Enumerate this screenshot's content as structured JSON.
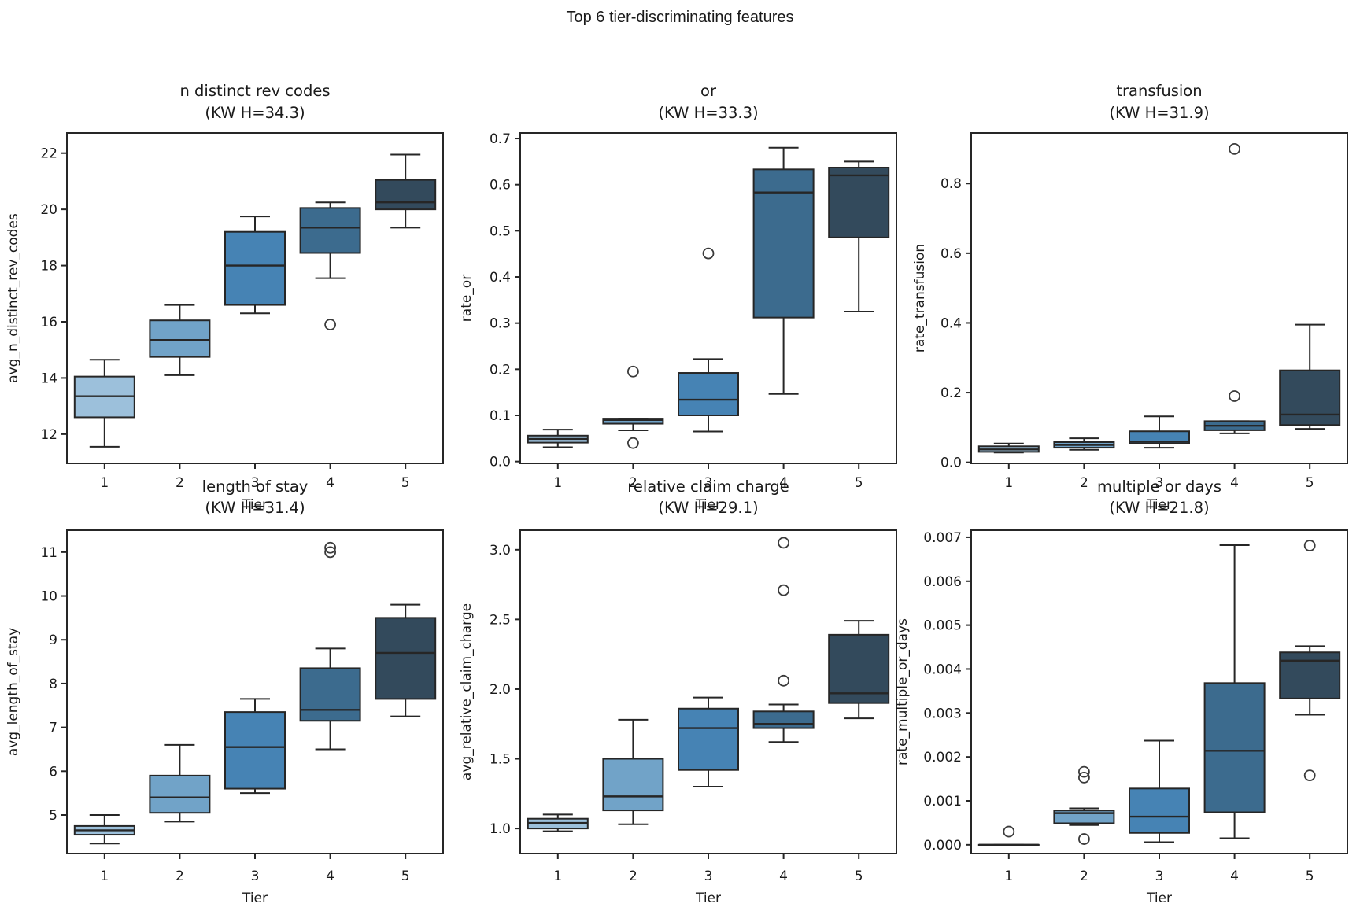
{
  "figure": {
    "title": "Top 6 tier-discriminating features",
    "background": "#ffffff",
    "text_color": "#1a1a1a",
    "edge_color": "#262626",
    "flier_color": "#3a3a3a",
    "tier_palette": [
      "#9cc0db",
      "#71a3c8",
      "#4683b4",
      "#3c6b8e",
      "#334a5c"
    ]
  },
  "chart_data": [
    {
      "type": "box",
      "title": "n distinct rev codes",
      "subtitle": "(KW H=34.3)",
      "xlabel": "Tier",
      "ylabel": "avg_n_distinct_rev_codes",
      "categories": [
        "1",
        "2",
        "3",
        "4",
        "5"
      ],
      "ylim": [
        10.96,
        22.72
      ],
      "yticks": [
        12,
        14,
        16,
        18,
        20,
        22
      ],
      "ytick_labels": [
        "12",
        "14",
        "16",
        "18",
        "20",
        "22"
      ],
      "boxes": [
        {
          "whislo": 11.55,
          "q1": 12.6,
          "med": 13.35,
          "q3": 14.05,
          "whishi": 14.65,
          "fliers": []
        },
        {
          "whislo": 14.1,
          "q1": 14.75,
          "med": 15.35,
          "q3": 16.05,
          "whishi": 16.6,
          "fliers": []
        },
        {
          "whislo": 16.3,
          "q1": 16.6,
          "med": 18.0,
          "q3": 19.2,
          "whishi": 19.75,
          "fliers": []
        },
        {
          "whislo": 17.55,
          "q1": 18.45,
          "med": 19.35,
          "q3": 20.05,
          "whishi": 20.25,
          "fliers": [
            15.9
          ]
        },
        {
          "whislo": 19.35,
          "q1": 20.0,
          "med": 20.25,
          "q3": 21.05,
          "whishi": 21.95,
          "fliers": []
        }
      ]
    },
    {
      "type": "box",
      "title": "or",
      "subtitle": "(KW H=33.3)",
      "xlabel": "Tier",
      "ylabel": "rate_or",
      "categories": [
        "1",
        "2",
        "3",
        "4",
        "5"
      ],
      "ylim": [
        -0.004,
        0.712
      ],
      "yticks": [
        0.0,
        0.1,
        0.2,
        0.3,
        0.4,
        0.5,
        0.6,
        0.7
      ],
      "ytick_labels": [
        "0.0",
        "0.1",
        "0.2",
        "0.3",
        "0.4",
        "0.5",
        "0.6",
        "0.7"
      ],
      "boxes": [
        {
          "whislo": 0.031,
          "q1": 0.041,
          "med": 0.049,
          "q3": 0.056,
          "whishi": 0.069,
          "fliers": []
        },
        {
          "whislo": 0.0675,
          "q1": 0.082,
          "med": 0.09,
          "q3": 0.093,
          "whishi": 0.093,
          "fliers": [
            0.195,
            0.04
          ]
        },
        {
          "whislo": 0.065,
          "q1": 0.1,
          "med": 0.134,
          "q3": 0.192,
          "whishi": 0.222,
          "fliers": [
            0.451
          ]
        },
        {
          "whislo": 0.1465,
          "q1": 0.312,
          "med": 0.583,
          "q3": 0.633,
          "whishi": 0.68,
          "fliers": []
        },
        {
          "whislo": 0.325,
          "q1": 0.4855,
          "med": 0.62,
          "q3": 0.637,
          "whishi": 0.65,
          "fliers": []
        }
      ]
    },
    {
      "type": "box",
      "title": "transfusion",
      "subtitle": "(KW H=31.9)",
      "xlabel": "Tier",
      "ylabel": "rate_transfusion",
      "categories": [
        "1",
        "2",
        "3",
        "4",
        "5"
      ],
      "ylim": [
        -0.003,
        0.945
      ],
      "yticks": [
        0.0,
        0.2,
        0.4,
        0.6,
        0.8
      ],
      "ytick_labels": [
        "0.0",
        "0.2",
        "0.4",
        "0.6",
        "0.8"
      ],
      "boxes": [
        {
          "whislo": 0.028,
          "q1": 0.03,
          "med": 0.037,
          "q3": 0.046,
          "whishi": 0.054,
          "fliers": []
        },
        {
          "whislo": 0.036,
          "q1": 0.042,
          "med": 0.05,
          "q3": 0.058,
          "whishi": 0.069,
          "fliers": []
        },
        {
          "whislo": 0.042,
          "q1": 0.054,
          "med": 0.059,
          "q3": 0.089,
          "whishi": 0.132,
          "fliers": []
        },
        {
          "whislo": 0.083,
          "q1": 0.092,
          "med": 0.105,
          "q3": 0.118,
          "whishi": 0.118,
          "fliers": [
            0.19,
            0.899
          ]
        },
        {
          "whislo": 0.096,
          "q1": 0.107,
          "med": 0.137,
          "q3": 0.264,
          "whishi": 0.395,
          "fliers": []
        }
      ]
    },
    {
      "type": "box",
      "title": "length of stay",
      "subtitle": "(KW H=31.4)",
      "xlabel": "Tier",
      "ylabel": "avg_length_of_stay",
      "categories": [
        "1",
        "2",
        "3",
        "4",
        "5"
      ],
      "ylim": [
        4.12,
        11.5
      ],
      "yticks": [
        5,
        6,
        7,
        8,
        9,
        10,
        11
      ],
      "ytick_labels": [
        "5",
        "6",
        "7",
        "8",
        "9",
        "10",
        "11"
      ],
      "boxes": [
        {
          "whislo": 4.35,
          "q1": 4.55,
          "med": 4.65,
          "q3": 4.75,
          "whishi": 5.0,
          "fliers": []
        },
        {
          "whislo": 4.85,
          "q1": 5.05,
          "med": 5.4,
          "q3": 5.9,
          "whishi": 6.6,
          "fliers": []
        },
        {
          "whislo": 5.5,
          "q1": 5.6,
          "med": 6.55,
          "q3": 7.35,
          "whishi": 7.65,
          "fliers": []
        },
        {
          "whislo": 6.5,
          "q1": 7.15,
          "med": 7.4,
          "q3": 8.35,
          "whishi": 8.8,
          "fliers": [
            11.0,
            11.1
          ]
        },
        {
          "whislo": 7.25,
          "q1": 7.65,
          "med": 8.7,
          "q3": 9.5,
          "whishi": 9.8,
          "fliers": []
        }
      ]
    },
    {
      "type": "box",
      "title": "relative claim charge",
      "subtitle": "(KW H=29.1)",
      "xlabel": "Tier",
      "ylabel": "avg_relative_claim_charge",
      "categories": [
        "1",
        "2",
        "3",
        "4",
        "5"
      ],
      "ylim": [
        0.82,
        3.14
      ],
      "yticks": [
        1.0,
        1.5,
        2.0,
        2.5,
        3.0
      ],
      "ytick_labels": [
        "1.0",
        "1.5",
        "2.0",
        "2.5",
        "3.0"
      ],
      "boxes": [
        {
          "whislo": 0.98,
          "q1": 1.0,
          "med": 1.04,
          "q3": 1.07,
          "whishi": 1.1,
          "fliers": []
        },
        {
          "whislo": 1.03,
          "q1": 1.13,
          "med": 1.23,
          "q3": 1.5,
          "whishi": 1.78,
          "fliers": []
        },
        {
          "whislo": 1.3,
          "q1": 1.42,
          "med": 1.72,
          "q3": 1.86,
          "whishi": 1.94,
          "fliers": []
        },
        {
          "whislo": 1.62,
          "q1": 1.72,
          "med": 1.75,
          "q3": 1.84,
          "whishi": 1.89,
          "fliers": [
            2.06,
            2.71,
            3.05
          ]
        },
        {
          "whislo": 1.79,
          "q1": 1.9,
          "med": 1.97,
          "q3": 2.39,
          "whishi": 2.49,
          "fliers": []
        }
      ]
    },
    {
      "type": "box",
      "title": "multiple or days",
      "subtitle": "(KW H=21.8)",
      "xlabel": "Tier",
      "ylabel": "rate_multiple_or_days",
      "categories": [
        "1",
        "2",
        "3",
        "4",
        "5"
      ],
      "ylim": [
        -0.0002,
        0.00716
      ],
      "yticks": [
        0.0,
        0.001,
        0.002,
        0.003,
        0.004,
        0.005,
        0.006,
        0.007
      ],
      "ytick_labels": [
        "0.000",
        "0.001",
        "0.002",
        "0.003",
        "0.004",
        "0.005",
        "0.006",
        "0.007"
      ],
      "boxes": [
        {
          "whislo": 0.0,
          "q1": 0.0,
          "med": 0.0,
          "q3": 0.0,
          "whishi": 0.0,
          "fliers": [
            0.0003
          ]
        },
        {
          "whislo": 0.00045,
          "q1": 0.00049,
          "med": 0.00072,
          "q3": 0.00078,
          "whishi": 0.00083,
          "fliers": [
            0.00166,
            0.00153,
            0.00013
          ]
        },
        {
          "whislo": 6e-05,
          "q1": 0.00027,
          "med": 0.00064,
          "q3": 0.00128,
          "whishi": 0.00237,
          "fliers": []
        },
        {
          "whislo": 0.00015,
          "q1": 0.00074,
          "med": 0.00214,
          "q3": 0.00368,
          "whishi": 0.00682,
          "fliers": []
        },
        {
          "whislo": 0.00296,
          "q1": 0.00333,
          "med": 0.00419,
          "q3": 0.00438,
          "whishi": 0.00452,
          "fliers": [
            0.00681,
            0.00158
          ]
        }
      ]
    }
  ]
}
